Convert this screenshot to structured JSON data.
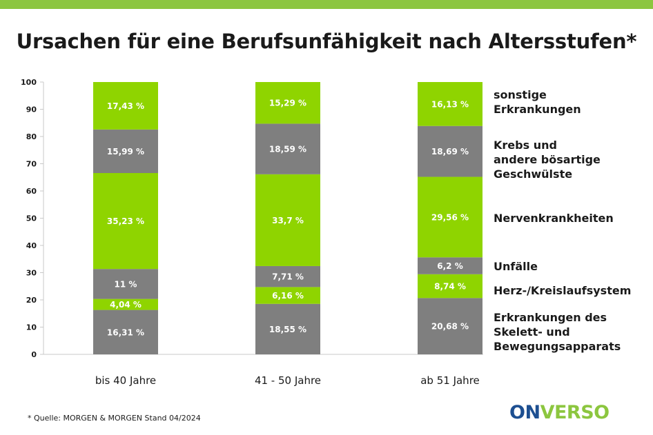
{
  "colors": {
    "topbar": "#8cc63f",
    "green": "#8fd400",
    "gray": "#7f7f7f",
    "logo_blue": "#1d4f91",
    "logo_green": "#8cc63f"
  },
  "title": "Ursachen für eine Berufsunfähigkeit nach Altersstufen*",
  "source": "* Quelle: MORGEN & MORGEN Stand 04/2024",
  "logo": {
    "part1": "ON",
    "part2": "VERSO"
  },
  "chart_data": {
    "type": "bar",
    "stacked": true,
    "categories": [
      "bis 40 Jahre",
      "41 - 50 Jahre",
      "ab 51 Jahre"
    ],
    "ylim": [
      0,
      100
    ],
    "yticks": [
      0,
      10,
      20,
      30,
      40,
      50,
      60,
      70,
      80,
      90,
      100
    ],
    "grid": false,
    "legend_position": "right",
    "series": [
      {
        "name": "Erkrankungen des\nSkelett- und\nBewegungsapparats",
        "color": "#7f7f7f",
        "values": [
          16.31,
          18.55,
          20.68
        ],
        "labels": [
          "16,31 %",
          "18,55 %",
          "20,68 %"
        ]
      },
      {
        "name": "Herz-/Kreislaufsystem",
        "color": "#8fd400",
        "values": [
          4.04,
          6.16,
          8.74
        ],
        "labels": [
          "4,04 %",
          "6,16 %",
          "8,74 %"
        ]
      },
      {
        "name": "Unfälle",
        "color": "#7f7f7f",
        "values": [
          11,
          7.71,
          6.2
        ],
        "labels": [
          "11 %",
          "7,71 %",
          "6,2 %"
        ]
      },
      {
        "name": "Nervenkrankheiten",
        "color": "#8fd400",
        "values": [
          35.23,
          33.7,
          29.56
        ],
        "labels": [
          "35,23 %",
          "33,7 %",
          "29,56 %"
        ]
      },
      {
        "name": "Krebs und\nandere bösartige\nGeschwülste",
        "color": "#7f7f7f",
        "values": [
          15.99,
          18.59,
          18.69
        ],
        "labels": [
          "15,99 %",
          "18,59 %",
          "18,69 %"
        ]
      },
      {
        "name": "sonstige\nErkrankungen",
        "color": "#8fd400",
        "values": [
          17.43,
          15.29,
          16.13
        ],
        "labels": [
          "17,43 %",
          "15,29 %",
          "16,13 %"
        ]
      }
    ]
  }
}
